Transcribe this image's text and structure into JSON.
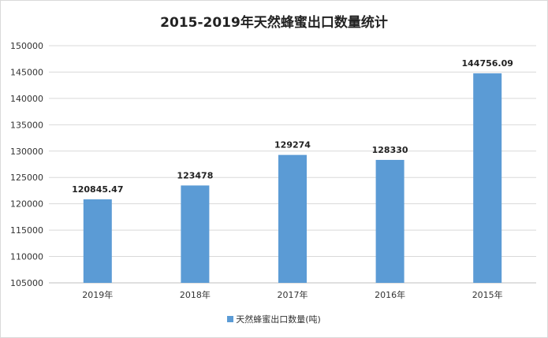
{
  "chart_data": {
    "type": "bar",
    "title": "2015-2019年天然蜂蜜出口数量统计",
    "categories": [
      "2019年",
      "2018年",
      "2017年",
      "2016年",
      "2015年"
    ],
    "series": [
      {
        "name": "天然蜂蜜出口数量(吨)",
        "values": [
          120845.47,
          123478,
          129274,
          128330,
          144756.09
        ],
        "labels": [
          "120845.47",
          "123478",
          "129274",
          "128330",
          "144756.09"
        ],
        "color": "#5b9bd5"
      }
    ],
    "ylim": [
      105000,
      150000
    ],
    "yticks": [
      105000,
      110000,
      115000,
      120000,
      125000,
      130000,
      135000,
      140000,
      145000,
      150000
    ],
    "xlabel": "",
    "ylabel": "",
    "grid": true,
    "legend_position": "bottom"
  }
}
